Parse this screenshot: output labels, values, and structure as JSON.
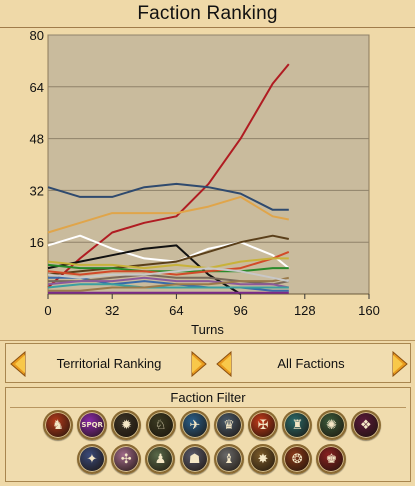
{
  "title": "Faction Ranking",
  "chart_data": {
    "type": "line",
    "xlabel": "Turns",
    "ylabel": "",
    "xlim": [
      0,
      160
    ],
    "ylim": [
      0,
      80
    ],
    "xticks": [
      0,
      32,
      64,
      96,
      128,
      160
    ],
    "yticks": [
      16,
      32,
      48,
      64,
      80
    ],
    "grid": true,
    "series": [
      {
        "color": "#b01c22",
        "x": [
          0,
          16,
          32,
          48,
          64,
          80,
          96,
          112,
          120
        ],
        "y": [
          2,
          11,
          19,
          22,
          24,
          34,
          48,
          65,
          71
        ]
      },
      {
        "color": "#2f4a6e",
        "x": [
          0,
          16,
          32,
          48,
          64,
          80,
          96,
          112,
          120
        ],
        "y": [
          33,
          30,
          30,
          33,
          34,
          33,
          31,
          26,
          26
        ]
      },
      {
        "color": "#e0a54a",
        "x": [
          0,
          16,
          32,
          48,
          64,
          80,
          96,
          112,
          120
        ],
        "y": [
          19,
          22,
          25,
          25,
          25,
          27,
          30,
          24,
          23
        ]
      },
      {
        "color": "#ffffff",
        "x": [
          0,
          16,
          32,
          48,
          64,
          80,
          96,
          112,
          120
        ],
        "y": [
          15,
          18,
          14,
          11,
          10,
          14,
          16,
          12,
          8
        ]
      },
      {
        "color": "#111111",
        "x": [
          0,
          16,
          32,
          48,
          64,
          80,
          96
        ],
        "y": [
          8,
          10,
          12,
          14,
          15,
          6,
          0
        ]
      },
      {
        "color": "#5a3f1a",
        "x": [
          0,
          16,
          32,
          48,
          64,
          80,
          96,
          112,
          120
        ],
        "y": [
          6,
          7,
          8,
          9,
          10,
          13,
          16,
          18,
          17
        ]
      },
      {
        "color": "#2a8a2a",
        "x": [
          0,
          16,
          32,
          48,
          64,
          80,
          96,
          112,
          120
        ],
        "y": [
          9,
          8,
          8,
          7,
          7,
          7,
          7,
          8,
          8
        ]
      },
      {
        "color": "#d24a28",
        "x": [
          0,
          16,
          32,
          48,
          64,
          80,
          96,
          112,
          120
        ],
        "y": [
          7,
          6,
          7,
          7,
          6,
          7,
          8,
          11,
          13
        ]
      },
      {
        "color": "#3a6aa8",
        "x": [
          0,
          16,
          32,
          48,
          64,
          80,
          96,
          112,
          120
        ],
        "y": [
          5,
          5,
          3,
          4,
          3,
          2,
          2,
          1,
          1
        ]
      },
      {
        "color": "#c8b23a",
        "x": [
          0,
          16,
          32,
          48,
          64,
          80,
          96,
          112,
          120
        ],
        "y": [
          10,
          9,
          9,
          8,
          9,
          8,
          10,
          11,
          11
        ]
      },
      {
        "color": "#7a6a5a",
        "x": [
          0,
          16,
          32,
          48,
          64,
          80,
          96,
          112,
          120
        ],
        "y": [
          4,
          4,
          5,
          6,
          5,
          5,
          4,
          3,
          4
        ]
      },
      {
        "color": "#8b5a9a",
        "x": [
          0,
          16,
          32,
          48,
          64,
          80,
          96,
          112,
          120
        ],
        "y": [
          3,
          4,
          4,
          5,
          4,
          4,
          3,
          3,
          2
        ]
      },
      {
        "color": "#3aa0a0",
        "x": [
          0,
          16,
          32,
          48,
          64,
          80,
          96,
          112,
          120
        ],
        "y": [
          2,
          3,
          3,
          2,
          2,
          2,
          2,
          2,
          2
        ]
      },
      {
        "color": "#9a7a4a",
        "x": [
          0,
          16,
          32,
          48,
          64,
          80,
          96,
          112,
          120
        ],
        "y": [
          1,
          1,
          2,
          2,
          3,
          3,
          4,
          4,
          5
        ]
      },
      {
        "color": "#c8c8c8",
        "x": [
          0,
          16,
          32,
          48,
          64,
          80,
          96,
          112,
          120
        ],
        "y": [
          6,
          5,
          6,
          6,
          7,
          8,
          7,
          5,
          4
        ]
      },
      {
        "color": "#7a2a8a",
        "x": [
          0,
          120
        ],
        "y": [
          0.4,
          0.4
        ]
      }
    ]
  },
  "ranking_selector": {
    "label": "Territorial Ranking"
  },
  "faction_selector": {
    "label": "All Factions"
  },
  "filter": {
    "title": "Faction Filter",
    "emblems": [
      {
        "name": "faction-emblem-1",
        "color": "#b23a1c",
        "glyph": "♞"
      },
      {
        "name": "faction-emblem-spqr",
        "color": "#8a2aa8",
        "glyph": "SPQR"
      },
      {
        "name": "faction-emblem-3",
        "color": "#3a3326",
        "glyph": "✹"
      },
      {
        "name": "faction-emblem-4",
        "color": "#3a3a22",
        "glyph": "♘"
      },
      {
        "name": "faction-emblem-5",
        "color": "#2a5f8a",
        "glyph": "✈"
      },
      {
        "name": "faction-emblem-6",
        "color": "#4a5a6a",
        "glyph": "♛"
      },
      {
        "name": "faction-emblem-7",
        "color": "#c23a1a",
        "glyph": "✠"
      },
      {
        "name": "faction-emblem-8",
        "color": "#2a6a6a",
        "glyph": "♜"
      },
      {
        "name": "faction-emblem-9",
        "color": "#3a5a3a",
        "glyph": "✺"
      },
      {
        "name": "faction-emblem-10",
        "color": "#5a1a3a",
        "glyph": "❖"
      },
      {
        "name": "faction-emblem-11",
        "color": "#3a4a7a",
        "glyph": "✦"
      },
      {
        "name": "faction-emblem-12",
        "color": "#a06a8a",
        "glyph": "✣"
      },
      {
        "name": "faction-emblem-13",
        "color": "#5a6a4a",
        "glyph": "♟"
      },
      {
        "name": "faction-emblem-14",
        "color": "#5a5a6a",
        "glyph": "☗"
      },
      {
        "name": "faction-emblem-15",
        "color": "#6a6a6a",
        "glyph": "♝"
      },
      {
        "name": "faction-emblem-16",
        "color": "#7a5a2a",
        "glyph": "✸"
      },
      {
        "name": "faction-emblem-17",
        "color": "#8a3a1a",
        "glyph": "❂"
      },
      {
        "name": "faction-emblem-18",
        "color": "#8a2222",
        "glyph": "♚"
      }
    ]
  }
}
